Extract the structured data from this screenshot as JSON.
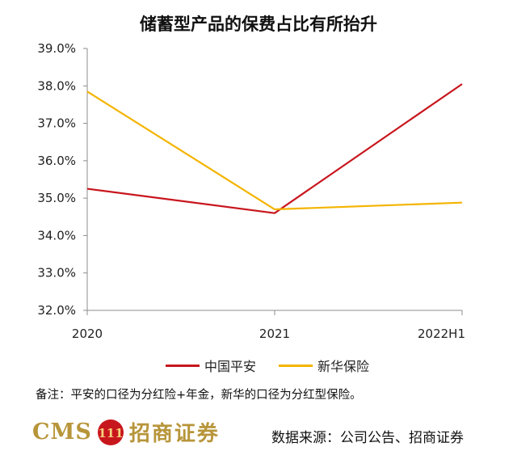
{
  "title": "储蓄型产品的保费占比有所抬升",
  "chart_data": {
    "type": "line",
    "categories": [
      "2020",
      "2021",
      "2022H1"
    ],
    "series": [
      {
        "name": "中国平安",
        "color": "#c8161d",
        "values": [
          35.25,
          34.6,
          38.05
        ]
      },
      {
        "name": "新华保险",
        "color": "#f4b400",
        "values": [
          37.85,
          34.7,
          34.88
        ]
      }
    ],
    "ylim": [
      32.0,
      39.0
    ],
    "yticks": [
      "32.0%",
      "33.0%",
      "34.0%",
      "35.0%",
      "36.0%",
      "37.0%",
      "38.0%",
      "39.0%"
    ],
    "ytick_values": [
      32,
      33,
      34,
      35,
      36,
      37,
      38,
      39
    ],
    "grid": false,
    "legend_position": "bottom"
  },
  "note": "备注：平安的口径为分红险+年金，新华的口径为分红型保险。",
  "footer": {
    "logo_text": "CMS",
    "logo_emblem_text": "111",
    "logo_cn": "招商证券",
    "source": "数据来源：公司公告、招商证券"
  }
}
